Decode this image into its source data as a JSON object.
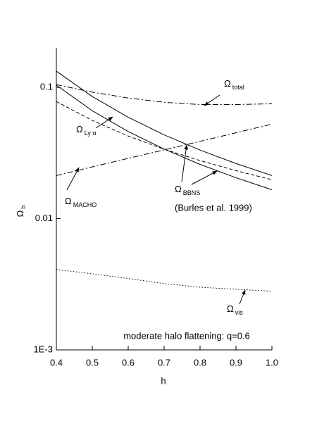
{
  "chart_data": {
    "type": "line",
    "log_y": true,
    "xlabel": "h",
    "ylabel": {
      "text": "Ω",
      "sub": "b"
    },
    "x": [
      0.4,
      0.5,
      0.6,
      0.7,
      0.8,
      0.9,
      1.0
    ],
    "xlim": [
      0.4,
      1.0
    ],
    "xticks": [
      {
        "value": 0.4,
        "label": "0.4"
      },
      {
        "value": 0.5,
        "label": "0.5"
      },
      {
        "value": 0.6,
        "label": "0.6"
      },
      {
        "value": 0.7,
        "label": "0.7"
      },
      {
        "value": 0.8,
        "label": "0.8"
      },
      {
        "value": 0.9,
        "label": "0.9"
      },
      {
        "value": 1.0,
        "label": "1.0"
      }
    ],
    "ylim": [
      0.001,
      0.2
    ],
    "yticks": [
      {
        "value": 0.001,
        "label": "1E-3"
      },
      0.01,
      0.1
    ],
    "series": [
      {
        "color": "#000000",
        "dash": "solid",
        "values": [
          0.133,
          0.0852,
          0.0592,
          0.0435,
          0.0333,
          0.0263,
          0.0213
        ]
      },
      {
        "color": "#000000",
        "dash": "solid",
        "values": [
          0.104,
          0.0664,
          0.0461,
          0.0339,
          0.0259,
          0.0205,
          0.0166
        ]
      },
      {
        "color": "#000000",
        "dash": "dashed",
        "values": [
          0.078,
          0.056,
          0.0426,
          0.0338,
          0.0277,
          0.0232,
          0.0198
        ]
      },
      {
        "color": "#000000",
        "dash": "dashdot",
        "values": [
          0.105,
          0.092,
          0.083,
          0.077,
          0.074,
          0.074,
          0.075
        ]
      },
      {
        "color": "#000000",
        "dash": "dashdot",
        "values": [
          0.0213,
          0.0248,
          0.0288,
          0.0334,
          0.0388,
          0.0451,
          0.0525
        ]
      },
      {
        "color": "#000000",
        "dash": "dotted",
        "values": [
          0.0041,
          0.0038,
          0.0035,
          0.0032,
          0.003,
          0.0029,
          0.0028
        ]
      }
    ],
    "annotations": [
      {
        "text": "Ω",
        "sub": "total"
      },
      {
        "text": "Ω",
        "sub": "Ly α"
      },
      {
        "text": "Ω",
        "sub": "BBNS",
        "note": "(Burles et al. 1999)"
      },
      {
        "text": "Ω",
        "sub": "MACHO"
      },
      {
        "text": "Ω",
        "sub": "vis"
      }
    ],
    "inner_label": "moderate halo flattening: q=0.6"
  }
}
